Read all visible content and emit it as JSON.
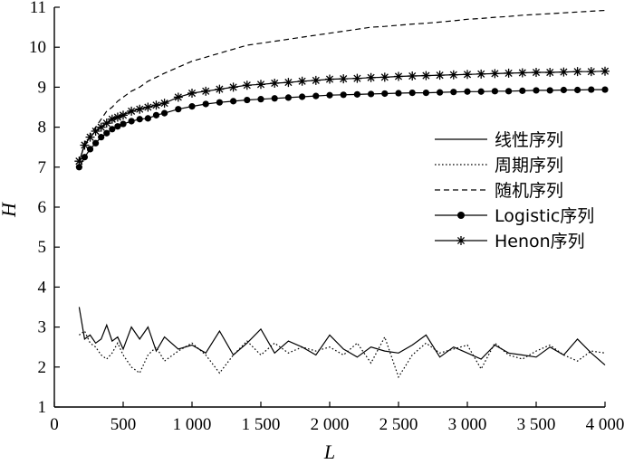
{
  "chart_data": {
    "type": "line",
    "xlabel": "L",
    "ylabel": "H",
    "xlim": [
      0,
      4000
    ],
    "ylim": [
      1,
      11
    ],
    "xticks": [
      0,
      500,
      1000,
      1500,
      2000,
      2500,
      3000,
      3500,
      4000
    ],
    "xtick_labels": [
      "0",
      "500",
      "1 000",
      "1 500",
      "2 000",
      "2 500",
      "3 000",
      "3 500",
      "4 000"
    ],
    "yticks": [
      1,
      2,
      3,
      4,
      5,
      6,
      7,
      8,
      9,
      10,
      11
    ],
    "ytick_labels": [
      "1",
      "2",
      "3",
      "4",
      "5",
      "6",
      "7",
      "8",
      "9",
      "10",
      "11"
    ],
    "grid": false,
    "legend_position": "right-middle",
    "x": [
      180,
      220,
      260,
      300,
      340,
      380,
      420,
      460,
      500,
      560,
      620,
      680,
      740,
      800,
      900,
      1000,
      1100,
      1200,
      1300,
      1400,
      1500,
      1600,
      1700,
      1800,
      1900,
      2000,
      2100,
      2200,
      2300,
      2400,
      2500,
      2600,
      2700,
      2800,
      2900,
      3000,
      3100,
      3200,
      3300,
      3400,
      3500,
      3600,
      3700,
      3800,
      3900,
      4000
    ],
    "series": [
      {
        "name": "线性序列",
        "style": "solid",
        "values": [
          3.5,
          2.7,
          2.8,
          2.6,
          2.7,
          3.05,
          2.65,
          2.75,
          2.45,
          3.0,
          2.7,
          3.0,
          2.4,
          2.75,
          2.45,
          2.55,
          2.35,
          2.9,
          2.3,
          2.6,
          2.95,
          2.35,
          2.65,
          2.5,
          2.3,
          2.8,
          2.45,
          2.25,
          2.5,
          2.4,
          2.35,
          2.55,
          2.8,
          2.25,
          2.5,
          2.35,
          2.2,
          2.55,
          2.35,
          2.3,
          2.25,
          2.5,
          2.3,
          2.7,
          2.35,
          2.05
        ]
      },
      {
        "name": "周期序列",
        "style": "dotted",
        "values": [
          2.8,
          2.9,
          2.6,
          2.5,
          2.3,
          2.2,
          2.35,
          2.6,
          2.3,
          2.0,
          1.85,
          2.3,
          2.5,
          2.15,
          2.4,
          2.6,
          2.3,
          1.85,
          2.3,
          2.65,
          2.3,
          2.6,
          2.35,
          2.5,
          2.4,
          2.5,
          2.3,
          2.6,
          2.1,
          2.75,
          1.75,
          2.3,
          2.6,
          2.35,
          2.45,
          2.55,
          1.95,
          2.6,
          2.3,
          2.2,
          2.4,
          2.55,
          2.3,
          2.15,
          2.4,
          2.35
        ]
      },
      {
        "name": "随机序列",
        "style": "dashed",
        "values": [
          7.1,
          7.6,
          7.8,
          8.0,
          8.2,
          8.4,
          8.5,
          8.65,
          8.75,
          8.9,
          9.0,
          9.15,
          9.25,
          9.35,
          9.5,
          9.65,
          9.75,
          9.85,
          9.95,
          10.05,
          10.1,
          10.15,
          10.2,
          10.25,
          10.3,
          10.35,
          10.4,
          10.45,
          10.5,
          10.52,
          10.55,
          10.58,
          10.6,
          10.63,
          10.66,
          10.7,
          10.72,
          10.75,
          10.77,
          10.8,
          10.82,
          10.84,
          10.86,
          10.88,
          10.9,
          10.92
        ]
      },
      {
        "name": "Logistic序列",
        "style": "solid-dot",
        "values": [
          7.0,
          7.25,
          7.45,
          7.6,
          7.75,
          7.85,
          7.95,
          8.02,
          8.08,
          8.15,
          8.2,
          8.22,
          8.3,
          8.35,
          8.45,
          8.52,
          8.58,
          8.62,
          8.65,
          8.68,
          8.7,
          8.72,
          8.74,
          8.76,
          8.78,
          8.8,
          8.81,
          8.82,
          8.83,
          8.84,
          8.85,
          8.86,
          8.86,
          8.87,
          8.88,
          8.89,
          8.89,
          8.9,
          8.9,
          8.91,
          8.92,
          8.92,
          8.93,
          8.93,
          8.94,
          8.94
        ]
      },
      {
        "name": "Henon序列",
        "style": "solid-star",
        "values": [
          7.15,
          7.55,
          7.75,
          7.9,
          8.0,
          8.1,
          8.2,
          8.25,
          8.3,
          8.4,
          8.45,
          8.5,
          8.55,
          8.6,
          8.75,
          8.85,
          8.9,
          8.95,
          9.0,
          9.05,
          9.07,
          9.1,
          9.12,
          9.15,
          9.17,
          9.2,
          9.21,
          9.22,
          9.24,
          9.25,
          9.27,
          9.28,
          9.29,
          9.3,
          9.31,
          9.32,
          9.33,
          9.34,
          9.35,
          9.36,
          9.37,
          9.37,
          9.38,
          9.39,
          9.39,
          9.4
        ]
      }
    ]
  }
}
